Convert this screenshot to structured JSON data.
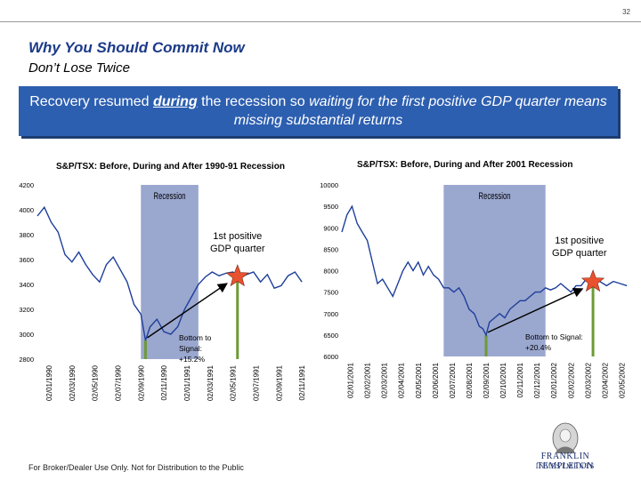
{
  "page_number": "32",
  "header": {
    "title": "Why You Should Commit Now",
    "subtitle": "Don’t Lose Twice"
  },
  "callout": {
    "part1": "Recovery resumed ",
    "part2": "during",
    "part3": " the recession so ",
    "part4": "waiting for the first positive GDP quarter means missing substantial returns"
  },
  "footer": "For Broker/Dealer Use Only. Not for Distribution to the Public",
  "logo": {
    "line1": "FRANKLIN TEMPLETON",
    "line2": "INVESTMENTS"
  },
  "colors": {
    "brand": "#1b3a88",
    "callout_bg": "#2d5fb0",
    "recession": "#9aa7cf",
    "line": "#1e3f9a",
    "signal_bar": "#6e9a37",
    "star": "#e8522f",
    "arrow": "#000000"
  },
  "chart_data": [
    {
      "type": "line",
      "title": "S&P/TSX: Before, During and After 1990-91 Recession",
      "ylim": [
        2800,
        4200
      ],
      "y_ticks": [
        "4200",
        "4000",
        "3800",
        "3600",
        "3400",
        "3200",
        "3000",
        "2800"
      ],
      "x_ticks": [
        "02/01/1990",
        "02/03/1990",
        "02/05/1990",
        "02/07/1990",
        "02/09/1990",
        "02/11/1990",
        "02/01/1991",
        "02/03/1991",
        "02/05/1991",
        "02/07/1991",
        "02/09/1991",
        "02/11/1991"
      ],
      "recession_label": "Recession",
      "recession_range": [
        4.5,
        7.0
      ],
      "signal_label": "1st positive GDP quarter",
      "bottom_label": "Bottom to Signal: +15.2%",
      "bottom_point": {
        "x": 4.7,
        "y": 2950
      },
      "signal_point": {
        "x": 8.7,
        "y": 3450
      },
      "series": [
        {
          "name": "S&P/TSX",
          "points": [
            [
              0,
              3950
            ],
            [
              0.3,
              4020
            ],
            [
              0.6,
              3900
            ],
            [
              0.9,
              3820
            ],
            [
              1.2,
              3640
            ],
            [
              1.5,
              3580
            ],
            [
              1.8,
              3660
            ],
            [
              2.1,
              3560
            ],
            [
              2.4,
              3480
            ],
            [
              2.7,
              3420
            ],
            [
              3.0,
              3560
            ],
            [
              3.3,
              3620
            ],
            [
              3.6,
              3520
            ],
            [
              3.9,
              3420
            ],
            [
              4.2,
              3240
            ],
            [
              4.5,
              3160
            ],
            [
              4.7,
              2950
            ],
            [
              4.9,
              3060
            ],
            [
              5.2,
              3120
            ],
            [
              5.5,
              3020
            ],
            [
              5.8,
              3000
            ],
            [
              6.1,
              3060
            ],
            [
              6.4,
              3200
            ],
            [
              6.7,
              3300
            ],
            [
              7.0,
              3400
            ],
            [
              7.3,
              3460
            ],
            [
              7.6,
              3500
            ],
            [
              7.9,
              3470
            ],
            [
              8.2,
              3490
            ],
            [
              8.5,
              3500
            ],
            [
              8.8,
              3450
            ],
            [
              9.1,
              3480
            ],
            [
              9.4,
              3500
            ],
            [
              9.7,
              3420
            ],
            [
              10.0,
              3480
            ],
            [
              10.3,
              3370
            ],
            [
              10.6,
              3390
            ],
            [
              10.9,
              3470
            ],
            [
              11.2,
              3500
            ],
            [
              11.5,
              3420
            ]
          ]
        }
      ]
    },
    {
      "type": "line",
      "title": "S&P/TSX: Before, During and After 2001 Recession",
      "ylim": [
        6000,
        10000
      ],
      "y_ticks": [
        "10000",
        "9500",
        "9000",
        "8500",
        "8000",
        "7500",
        "7000",
        "6500",
        "6000"
      ],
      "x_ticks": [
        "02/01/2001",
        "02/02/2001",
        "02/03/2001",
        "02/04/2001",
        "02/05/2001",
        "02/06/2001",
        "02/07/2001",
        "02/08/2001",
        "02/09/2001",
        "02/10/2001",
        "02/11/2001",
        "02/12/2001",
        "02/01/2002",
        "02/02/2002",
        "02/03/2002",
        "02/04/2002",
        "02/05/2002"
      ],
      "recession_label": "Recession",
      "recession_range": [
        6.0,
        12.0
      ],
      "signal_label": "1st positive GDP quarter",
      "bottom_label": "Bottom to Signal: +20.4%",
      "bottom_point": {
        "x": 8.5,
        "y": 6500
      },
      "signal_point": {
        "x": 14.8,
        "y": 7700
      },
      "series": [
        {
          "name": "S&P/TSX",
          "points": [
            [
              0,
              8900
            ],
            [
              0.3,
              9300
            ],
            [
              0.6,
              9500
            ],
            [
              0.9,
              9100
            ],
            [
              1.2,
              8900
            ],
            [
              1.5,
              8700
            ],
            [
              1.8,
              8200
            ],
            [
              2.1,
              7700
            ],
            [
              2.4,
              7800
            ],
            [
              2.7,
              7600
            ],
            [
              3.0,
              7400
            ],
            [
              3.3,
              7700
            ],
            [
              3.6,
              8000
            ],
            [
              3.9,
              8200
            ],
            [
              4.2,
              8000
            ],
            [
              4.5,
              8200
            ],
            [
              4.8,
              7900
            ],
            [
              5.1,
              8100
            ],
            [
              5.4,
              7900
            ],
            [
              5.7,
              7800
            ],
            [
              6.0,
              7600
            ],
            [
              6.3,
              7600
            ],
            [
              6.6,
              7500
            ],
            [
              6.9,
              7600
            ],
            [
              7.2,
              7400
            ],
            [
              7.5,
              7100
            ],
            [
              7.8,
              7000
            ],
            [
              8.1,
              6700
            ],
            [
              8.3,
              6650
            ],
            [
              8.5,
              6500
            ],
            [
              8.7,
              6800
            ],
            [
              9.0,
              6900
            ],
            [
              9.3,
              7000
            ],
            [
              9.6,
              6900
            ],
            [
              9.9,
              7100
            ],
            [
              10.2,
              7200
            ],
            [
              10.5,
              7300
            ],
            [
              10.8,
              7300
            ],
            [
              11.1,
              7400
            ],
            [
              11.4,
              7500
            ],
            [
              11.7,
              7500
            ],
            [
              12.0,
              7600
            ],
            [
              12.3,
              7550
            ],
            [
              12.6,
              7600
            ],
            [
              12.9,
              7700
            ],
            [
              13.2,
              7600
            ],
            [
              13.5,
              7500
            ],
            [
              13.8,
              7650
            ],
            [
              14.1,
              7650
            ],
            [
              14.4,
              7800
            ],
            [
              14.8,
              7700
            ],
            [
              15.2,
              7750
            ],
            [
              15.6,
              7650
            ],
            [
              16.0,
              7750
            ],
            [
              16.4,
              7700
            ],
            [
              16.8,
              7650
            ]
          ]
        }
      ]
    }
  ]
}
